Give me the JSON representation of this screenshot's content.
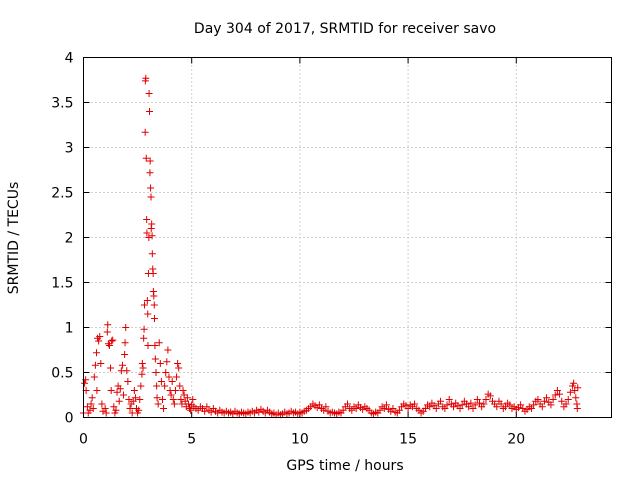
{
  "chart_data": {
    "type": "scatter",
    "title": "Day 304 of 2017, SRMTID for receiver savo",
    "xlabel": "GPS time / hours",
    "ylabel": "SRMTID / TECUs",
    "xlim": [
      0,
      24.4
    ],
    "ylim": [
      0,
      4
    ],
    "xticks": [
      0,
      5,
      10,
      15,
      20
    ],
    "yticks": [
      0,
      0.5,
      1,
      1.5,
      2,
      2.5,
      3,
      3.5,
      4
    ],
    "xtick_labels": [
      "0",
      "5",
      "10",
      "15",
      "20"
    ],
    "ytick_labels": [
      "0",
      "0.5",
      "1",
      "1.5",
      "2",
      "2.5",
      "3",
      "3.5",
      "4"
    ],
    "grid": true,
    "marker": "+",
    "marker_color": "#e00000",
    "series": [
      {
        "name": "SRMTID",
        "points": [
          [
            0.0,
            0.05
          ],
          [
            0.05,
            0.38
          ],
          [
            0.1,
            0.42
          ],
          [
            0.12,
            0.3
          ],
          [
            0.18,
            0.12
          ],
          [
            0.22,
            0.05
          ],
          [
            0.3,
            0.08
          ],
          [
            0.35,
            0.15
          ],
          [
            0.4,
            0.22
          ],
          [
            0.45,
            0.1
          ],
          [
            0.5,
            0.45
          ],
          [
            0.55,
            0.58
          ],
          [
            0.6,
            0.72
          ],
          [
            0.62,
            0.3
          ],
          [
            0.65,
            0.88
          ],
          [
            0.7,
            0.85
          ],
          [
            0.75,
            0.9
          ],
          [
            0.8,
            0.6
          ],
          [
            0.85,
            0.15
          ],
          [
            0.9,
            0.07
          ],
          [
            1.0,
            0.1
          ],
          [
            1.05,
            0.05
          ],
          [
            1.1,
            0.95
          ],
          [
            1.12,
            1.03
          ],
          [
            1.15,
            0.82
          ],
          [
            1.2,
            0.8
          ],
          [
            1.25,
            0.55
          ],
          [
            1.28,
            0.3
          ],
          [
            1.3,
            0.85
          ],
          [
            1.35,
            0.86
          ],
          [
            1.4,
            0.12
          ],
          [
            1.45,
            0.05
          ],
          [
            1.5,
            0.08
          ],
          [
            1.55,
            0.28
          ],
          [
            1.6,
            0.35
          ],
          [
            1.65,
            0.18
          ],
          [
            1.7,
            0.32
          ],
          [
            1.75,
            0.52
          ],
          [
            1.8,
            0.58
          ],
          [
            1.85,
            0.25
          ],
          [
            1.9,
            0.7
          ],
          [
            1.92,
            0.83
          ],
          [
            1.95,
            1.0
          ],
          [
            2.0,
            0.52
          ],
          [
            2.05,
            0.4
          ],
          [
            2.1,
            0.2
          ],
          [
            2.15,
            0.1
          ],
          [
            2.2,
            0.15
          ],
          [
            2.25,
            0.05
          ],
          [
            2.3,
            0.18
          ],
          [
            2.35,
            0.3
          ],
          [
            2.4,
            0.22
          ],
          [
            2.45,
            0.1
          ],
          [
            2.5,
            0.05
          ],
          [
            2.55,
            0.08
          ],
          [
            2.6,
            0.2
          ],
          [
            2.65,
            0.35
          ],
          [
            2.7,
            0.48
          ],
          [
            2.72,
            0.6
          ],
          [
            2.75,
            0.55
          ],
          [
            2.78,
            0.88
          ],
          [
            2.8,
            0.98
          ],
          [
            2.82,
            1.25
          ],
          [
            2.85,
            3.17
          ],
          [
            2.86,
            3.74
          ],
          [
            2.88,
            3.77
          ],
          [
            2.9,
            2.88
          ],
          [
            2.92,
            2.2
          ],
          [
            2.93,
            2.05
          ],
          [
            2.95,
            1.3
          ],
          [
            2.97,
            1.15
          ],
          [
            2.98,
            0.8
          ],
          [
            3.0,
            1.6
          ],
          [
            3.02,
            2.0
          ],
          [
            3.03,
            3.6
          ],
          [
            3.05,
            3.4
          ],
          [
            3.07,
            2.72
          ],
          [
            3.08,
            2.85
          ],
          [
            3.1,
            2.55
          ],
          [
            3.12,
            2.45
          ],
          [
            3.13,
            2.1
          ],
          [
            3.15,
            2.15
          ],
          [
            3.17,
            2.02
          ],
          [
            3.18,
            1.82
          ],
          [
            3.2,
            1.65
          ],
          [
            3.22,
            1.6
          ],
          [
            3.23,
            1.4
          ],
          [
            3.25,
            1.35
          ],
          [
            3.27,
            1.25
          ],
          [
            3.28,
            1.1
          ],
          [
            3.3,
            0.8
          ],
          [
            3.32,
            0.65
          ],
          [
            3.35,
            0.5
          ],
          [
            3.38,
            0.35
          ],
          [
            3.4,
            0.22
          ],
          [
            3.45,
            0.15
          ],
          [
            3.5,
            0.83
          ],
          [
            3.55,
            0.6
          ],
          [
            3.6,
            0.4
          ],
          [
            3.65,
            0.2
          ],
          [
            3.7,
            0.1
          ],
          [
            3.75,
            0.35
          ],
          [
            3.8,
            0.5
          ],
          [
            3.85,
            0.62
          ],
          [
            3.9,
            0.75
          ],
          [
            3.95,
            0.45
          ],
          [
            4.0,
            0.3
          ],
          [
            4.05,
            0.25
          ],
          [
            4.1,
            0.4
          ],
          [
            4.15,
            0.2
          ],
          [
            4.2,
            0.15
          ],
          [
            4.25,
            0.3
          ],
          [
            4.3,
            0.45
          ],
          [
            4.35,
            0.6
          ],
          [
            4.4,
            0.55
          ],
          [
            4.45,
            0.35
          ],
          [
            4.5,
            0.2
          ],
          [
            4.55,
            0.15
          ],
          [
            4.6,
            0.3
          ],
          [
            4.65,
            0.25
          ],
          [
            4.7,
            0.18
          ],
          [
            4.75,
            0.12
          ],
          [
            4.8,
            0.22
          ],
          [
            4.85,
            0.15
          ],
          [
            4.9,
            0.1
          ],
          [
            4.95,
            0.08
          ],
          [
            5.0,
            0.14
          ],
          [
            5.05,
            0.2
          ],
          [
            5.1,
            0.12
          ],
          [
            5.2,
            0.1
          ],
          [
            5.3,
            0.08
          ],
          [
            5.4,
            0.12
          ],
          [
            5.5,
            0.1
          ],
          [
            5.6,
            0.07
          ],
          [
            5.7,
            0.12
          ],
          [
            5.8,
            0.08
          ],
          [
            5.9,
            0.06
          ],
          [
            6.0,
            0.1
          ],
          [
            6.1,
            0.07
          ],
          [
            6.2,
            0.05
          ],
          [
            6.3,
            0.08
          ],
          [
            6.4,
            0.06
          ],
          [
            6.5,
            0.05
          ],
          [
            6.6,
            0.07
          ],
          [
            6.7,
            0.05
          ],
          [
            6.8,
            0.06
          ],
          [
            6.9,
            0.04
          ],
          [
            7.0,
            0.07
          ],
          [
            7.1,
            0.05
          ],
          [
            7.2,
            0.04
          ],
          [
            7.3,
            0.06
          ],
          [
            7.4,
            0.05
          ],
          [
            7.5,
            0.04
          ],
          [
            7.6,
            0.06
          ],
          [
            7.7,
            0.05
          ],
          [
            7.8,
            0.07
          ],
          [
            7.9,
            0.05
          ],
          [
            8.0,
            0.08
          ],
          [
            8.1,
            0.06
          ],
          [
            8.2,
            0.09
          ],
          [
            8.3,
            0.07
          ],
          [
            8.4,
            0.05
          ],
          [
            8.5,
            0.08
          ],
          [
            8.6,
            0.06
          ],
          [
            8.7,
            0.04
          ],
          [
            8.8,
            0.05
          ],
          [
            8.9,
            0.03
          ],
          [
            9.0,
            0.05
          ],
          [
            9.1,
            0.03
          ],
          [
            9.2,
            0.04
          ],
          [
            9.3,
            0.06
          ],
          [
            9.4,
            0.04
          ],
          [
            9.5,
            0.05
          ],
          [
            9.6,
            0.07
          ],
          [
            9.7,
            0.05
          ],
          [
            9.8,
            0.06
          ],
          [
            9.9,
            0.04
          ],
          [
            10.0,
            0.06
          ],
          [
            10.1,
            0.05
          ],
          [
            10.2,
            0.07
          ],
          [
            10.3,
            0.08
          ],
          [
            10.4,
            0.1
          ],
          [
            10.5,
            0.12
          ],
          [
            10.6,
            0.15
          ],
          [
            10.7,
            0.13
          ],
          [
            10.8,
            0.11
          ],
          [
            10.9,
            0.14
          ],
          [
            11.0,
            0.1
          ],
          [
            11.1,
            0.08
          ],
          [
            11.2,
            0.12
          ],
          [
            11.3,
            0.07
          ],
          [
            11.4,
            0.05
          ],
          [
            11.5,
            0.06
          ],
          [
            11.6,
            0.05
          ],
          [
            11.7,
            0.04
          ],
          [
            11.8,
            0.06
          ],
          [
            11.9,
            0.05
          ],
          [
            12.0,
            0.08
          ],
          [
            12.1,
            0.12
          ],
          [
            12.2,
            0.15
          ],
          [
            12.3,
            0.1
          ],
          [
            12.4,
            0.08
          ],
          [
            12.5,
            0.12
          ],
          [
            12.6,
            0.1
          ],
          [
            12.7,
            0.14
          ],
          [
            12.8,
            0.11
          ],
          [
            12.9,
            0.09
          ],
          [
            13.0,
            0.12
          ],
          [
            13.1,
            0.1
          ],
          [
            13.2,
            0.08
          ],
          [
            13.3,
            0.05
          ],
          [
            13.4,
            0.04
          ],
          [
            13.5,
            0.06
          ],
          [
            13.6,
            0.05
          ],
          [
            13.7,
            0.08
          ],
          [
            13.8,
            0.12
          ],
          [
            13.9,
            0.1
          ],
          [
            14.0,
            0.14
          ],
          [
            14.1,
            0.09
          ],
          [
            14.2,
            0.07
          ],
          [
            14.3,
            0.1
          ],
          [
            14.4,
            0.06
          ],
          [
            14.5,
            0.05
          ],
          [
            14.6,
            0.08
          ],
          [
            14.7,
            0.12
          ],
          [
            14.8,
            0.15
          ],
          [
            14.9,
            0.13
          ],
          [
            15.0,
            0.1
          ],
          [
            15.1,
            0.14
          ],
          [
            15.2,
            0.12
          ],
          [
            15.3,
            0.15
          ],
          [
            15.4,
            0.1
          ],
          [
            15.5,
            0.08
          ],
          [
            15.6,
            0.05
          ],
          [
            15.7,
            0.07
          ],
          [
            15.8,
            0.1
          ],
          [
            15.9,
            0.14
          ],
          [
            16.0,
            0.12
          ],
          [
            16.1,
            0.16
          ],
          [
            16.2,
            0.13
          ],
          [
            16.3,
            0.1
          ],
          [
            16.4,
            0.15
          ],
          [
            16.5,
            0.18
          ],
          [
            16.6,
            0.12
          ],
          [
            16.7,
            0.1
          ],
          [
            16.8,
            0.14
          ],
          [
            16.9,
            0.2
          ],
          [
            17.0,
            0.15
          ],
          [
            17.1,
            0.12
          ],
          [
            17.2,
            0.16
          ],
          [
            17.3,
            0.13
          ],
          [
            17.4,
            0.1
          ],
          [
            17.5,
            0.14
          ],
          [
            17.6,
            0.18
          ],
          [
            17.7,
            0.15
          ],
          [
            17.8,
            0.12
          ],
          [
            17.9,
            0.16
          ],
          [
            18.0,
            0.1
          ],
          [
            18.1,
            0.14
          ],
          [
            18.2,
            0.2
          ],
          [
            18.3,
            0.16
          ],
          [
            18.4,
            0.12
          ],
          [
            18.5,
            0.15
          ],
          [
            18.6,
            0.2
          ],
          [
            18.7,
            0.26
          ],
          [
            18.8,
            0.24
          ],
          [
            18.9,
            0.18
          ],
          [
            19.0,
            0.15
          ],
          [
            19.1,
            0.12
          ],
          [
            19.2,
            0.18
          ],
          [
            19.3,
            0.15
          ],
          [
            19.4,
            0.1
          ],
          [
            19.5,
            0.12
          ],
          [
            19.6,
            0.16
          ],
          [
            19.7,
            0.14
          ],
          [
            19.8,
            0.1
          ],
          [
            19.9,
            0.12
          ],
          [
            20.0,
            0.09
          ],
          [
            20.1,
            0.11
          ],
          [
            20.2,
            0.14
          ],
          [
            20.3,
            0.1
          ],
          [
            20.4,
            0.07
          ],
          [
            20.5,
            0.09
          ],
          [
            20.6,
            0.12
          ],
          [
            20.7,
            0.1
          ],
          [
            20.8,
            0.14
          ],
          [
            20.9,
            0.18
          ],
          [
            21.0,
            0.2
          ],
          [
            21.1,
            0.15
          ],
          [
            21.2,
            0.12
          ],
          [
            21.3,
            0.18
          ],
          [
            21.4,
            0.22
          ],
          [
            21.5,
            0.17
          ],
          [
            21.6,
            0.14
          ],
          [
            21.7,
            0.2
          ],
          [
            21.8,
            0.25
          ],
          [
            21.9,
            0.3
          ],
          [
            22.0,
            0.26
          ],
          [
            22.1,
            0.18
          ],
          [
            22.2,
            0.12
          ],
          [
            22.3,
            0.15
          ],
          [
            22.4,
            0.2
          ],
          [
            22.5,
            0.28
          ],
          [
            22.6,
            0.35
          ],
          [
            22.65,
            0.38
          ],
          [
            22.7,
            0.3
          ],
          [
            22.75,
            0.22
          ],
          [
            22.8,
            0.15
          ],
          [
            22.82,
            0.1
          ],
          [
            22.84,
            0.33
          ]
        ]
      }
    ]
  }
}
